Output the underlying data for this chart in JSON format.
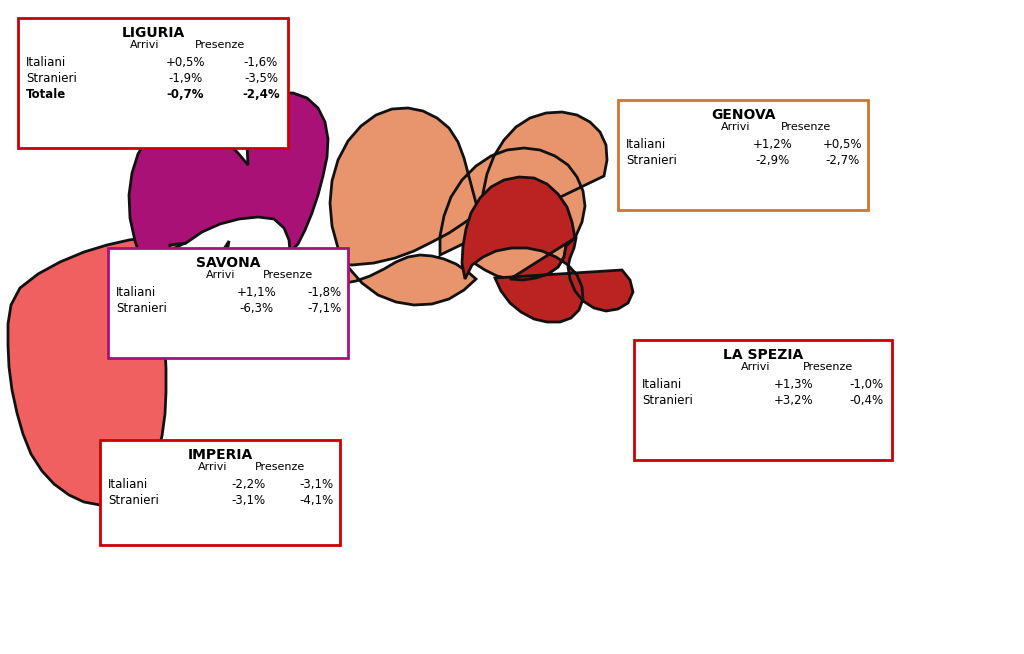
{
  "background_color": "#ffffff",
  "figsize": [
    10.24,
    6.54
  ],
  "dpi": 100,
  "provinces": {
    "imperia": {
      "color": "#F06060",
      "edge_color": "#111111",
      "label": "IMPERIA",
      "box_border": "#CC0000",
      "italiani_arrivi": "-2,2%",
      "italiani_presenze": "-3,1%",
      "stranieri_arrivi": "-3,1%",
      "stranieri_presenze": "-4,1%"
    },
    "savona": {
      "color": "#AA1177",
      "edge_color": "#111111",
      "label": "SAVONA",
      "box_border": "#AA1177",
      "italiani_arrivi": "+1,1%",
      "italiani_presenze": "-1,8%",
      "stranieri_arrivi": "-6,3%",
      "stranieri_presenze": "-7,1%"
    },
    "genova": {
      "color": "#E8956D",
      "edge_color": "#111111",
      "label": "GENOVA",
      "box_border": "#CC7733",
      "italiani_arrivi": "+1,2%",
      "italiani_presenze": "+0,5%",
      "stranieri_arrivi": "-2,9%",
      "stranieri_presenze": "-2,7%"
    },
    "laspezia": {
      "color": "#BB2222",
      "edge_color": "#111111",
      "label": "LA SPEZIA",
      "box_border": "#CC0000",
      "italiani_arrivi": "+1,3%",
      "italiani_presenze": "-1,0%",
      "stranieri_arrivi": "+3,2%",
      "stranieri_presenze": "-0,4%"
    }
  },
  "liguria_box": {
    "title": "LIGURIA",
    "border_color": "#CC0000",
    "italiani_arrivi": "+0,5%",
    "italiani_presenze": "-1,6%",
    "stranieri_arrivi": "-1,9%",
    "stranieri_presenze": "-3,5%",
    "totale_arrivi": "-0,7%",
    "totale_presenze": "-2,4%"
  }
}
